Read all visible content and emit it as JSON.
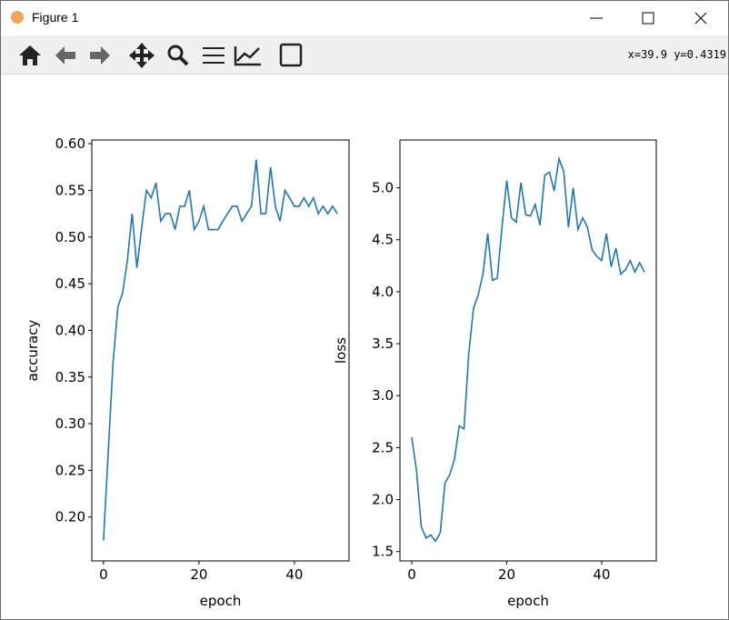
{
  "window": {
    "title": "Figure 1",
    "status": "x=39.9 y=0.4319"
  },
  "chart_data": [
    {
      "type": "line",
      "xlabel": "epoch",
      "ylabel": "accuracy",
      "x": [
        0,
        1,
        2,
        3,
        4,
        5,
        6,
        7,
        8,
        9,
        10,
        11,
        12,
        13,
        14,
        15,
        16,
        17,
        18,
        19,
        20,
        21,
        22,
        23,
        24,
        25,
        26,
        27,
        28,
        29,
        30,
        31,
        32,
        33,
        34,
        35,
        36,
        37,
        38,
        39,
        40,
        41,
        42,
        43,
        44,
        45,
        46,
        47,
        48,
        49
      ],
      "series": [
        {
          "color": "#1f77b4",
          "values": [
            0.175,
            0.27,
            0.365,
            0.425,
            0.44,
            0.475,
            0.525,
            0.467,
            0.51,
            0.55,
            0.542,
            0.558,
            0.517,
            0.525,
            0.525,
            0.508,
            0.533,
            0.533,
            0.55,
            0.508,
            0.517,
            0.533,
            0.508,
            0.508,
            0.508,
            0.517,
            0.525,
            0.533,
            0.533,
            0.517,
            0.525,
            0.533,
            0.583,
            0.525,
            0.525,
            0.575,
            0.533,
            0.517,
            0.55,
            0.542,
            0.533,
            0.533,
            0.542,
            0.533,
            0.542,
            0.525,
            0.533,
            0.525,
            0.533,
            0.525
          ]
        }
      ],
      "xlim": [
        -2.45,
        51.45
      ],
      "xticks": [
        0,
        20,
        40
      ],
      "ylim": [
        0.153,
        0.604
      ],
      "yticks": [
        {
          "value": 0.2,
          "label": "0.20"
        },
        0.25,
        {
          "value": 0.3,
          "label": "0.30"
        },
        0.35,
        {
          "value": 0.4,
          "label": "0.40"
        },
        0.45,
        {
          "value": 0.5,
          "label": "0.50"
        },
        0.55,
        {
          "value": 0.6,
          "label": "0.60"
        }
      ]
    },
    {
      "type": "line",
      "xlabel": "epoch",
      "ylabel": "loss",
      "x": [
        0,
        1,
        2,
        3,
        4,
        5,
        6,
        7,
        8,
        9,
        10,
        11,
        12,
        13,
        14,
        15,
        16,
        17,
        18,
        19,
        20,
        21,
        22,
        23,
        24,
        25,
        26,
        27,
        28,
        29,
        30,
        31,
        32,
        33,
        34,
        35,
        36,
        37,
        38,
        39,
        40,
        41,
        42,
        43,
        44,
        45,
        46,
        47,
        48,
        49
      ],
      "series": [
        {
          "color": "#1f77b4",
          "values": [
            2.6,
            2.28,
            1.74,
            1.63,
            1.66,
            1.6,
            1.68,
            2.16,
            2.24,
            2.39,
            2.71,
            2.68,
            3.4,
            3.84,
            3.97,
            4.17,
            4.56,
            4.11,
            4.13,
            4.62,
            5.07,
            4.71,
            4.67,
            5.05,
            4.74,
            4.73,
            4.84,
            4.64,
            5.12,
            5.15,
            4.97,
            5.28,
            5.16,
            4.62,
            5.0,
            4.6,
            4.71,
            4.62,
            4.4,
            4.34,
            4.3,
            4.56,
            4.24,
            4.42,
            4.17,
            4.21,
            4.3,
            4.19,
            4.28,
            4.19
          ]
        }
      ],
      "xlim": [
        -2.49,
        51.5
      ],
      "xticks": [
        0,
        20,
        40
      ],
      "ylim": [
        1.41,
        5.46
      ],
      "yticks": [
        1.5,
        {
          "value": 2,
          "label": "2.0"
        },
        2.5,
        {
          "value": 3,
          "label": "3.0"
        },
        3.5,
        {
          "value": 4,
          "label": "4.0"
        },
        4.5,
        {
          "value": 5,
          "label": "5.0"
        }
      ]
    }
  ]
}
